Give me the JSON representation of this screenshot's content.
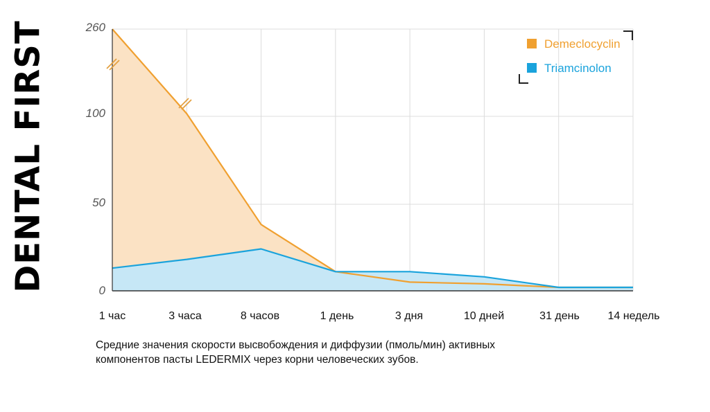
{
  "brand": "DENTAL FIRST",
  "caption": {
    "line1": "Средние значения скорости высвобождения и диффузии (пмоль/мин) активных",
    "line2": "компонентов пасты LEDERMIX через корни человеческих зубов."
  },
  "chart_data": {
    "type": "area",
    "categories": [
      "1 час",
      "3 часа",
      "8 часов",
      "1 день",
      "3 дня",
      "10 дней",
      "31 день",
      "14 недель"
    ],
    "y_tick_labels": [
      "0",
      "50",
      "100",
      "260"
    ],
    "y_axis_note": "broken axis between 100 and 260",
    "series": [
      {
        "name": "Demeclocyclin",
        "color": "#F0A030",
        "fill": "#FBE2C4",
        "values": [
          260,
          105,
          38,
          11,
          5,
          4,
          2,
          2
        ]
      },
      {
        "name": "Triamcinolon",
        "color": "#1AA3DC",
        "fill": "#C6E7F6",
        "values": [
          13,
          18,
          24,
          11,
          11,
          8,
          2,
          2
        ]
      }
    ],
    "legend_position": "top-right",
    "grid": true
  }
}
